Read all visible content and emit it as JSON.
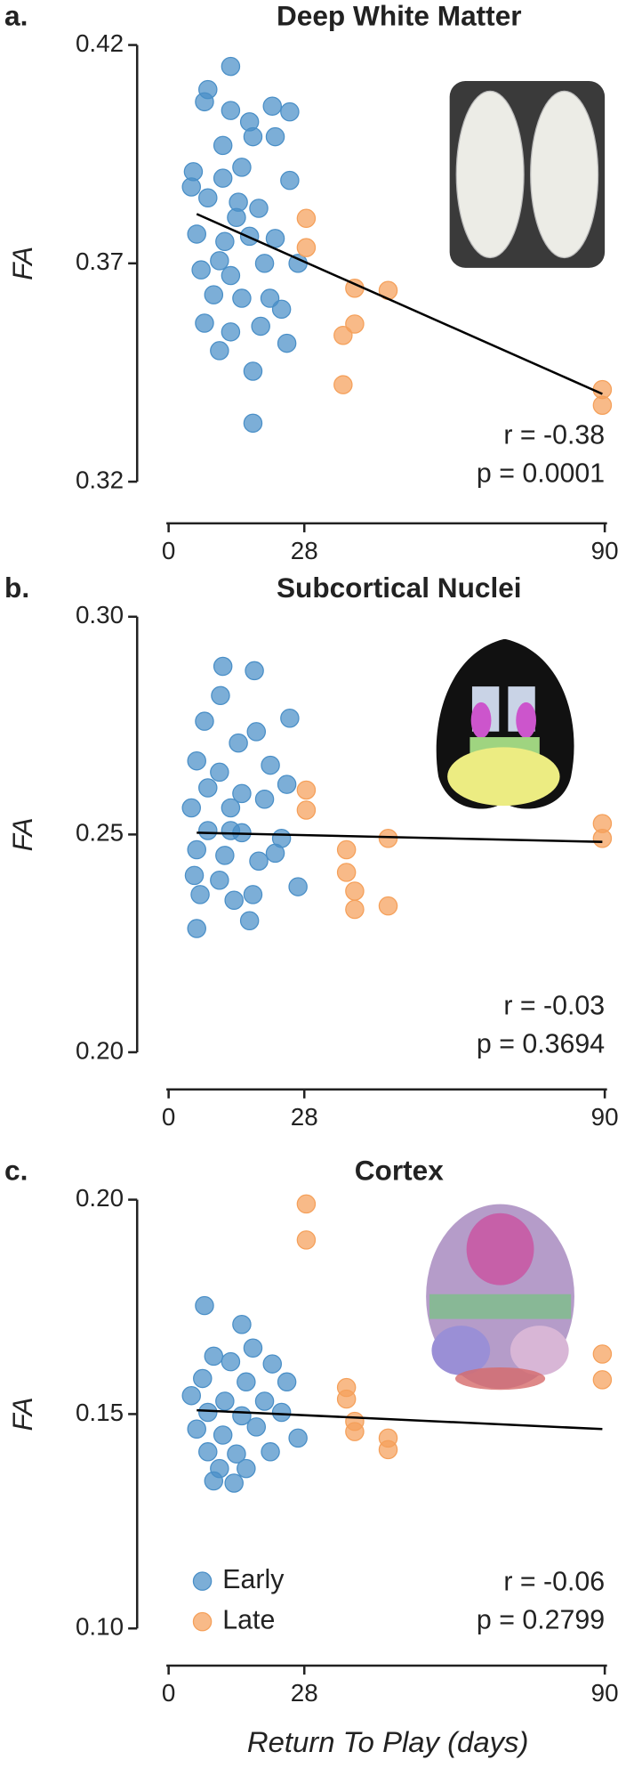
{
  "chart_data": [
    {
      "type": "scatter",
      "panel_label": "a.",
      "title": "Deep White Matter",
      "ylabel": "FA",
      "xlim": [
        0,
        90
      ],
      "xticks": [
        0,
        28,
        90
      ],
      "ylim": [
        0.32,
        0.42
      ],
      "yticks": [
        0.32,
        0.37,
        0.42
      ],
      "annotations": [
        "r = -0.38",
        "p = 0.0001"
      ],
      "trendline": {
        "color": "#000000",
        "x": [
          5.8,
          89.5
        ],
        "values": [
          0.3813,
          0.3401
        ]
      },
      "series": [
        {
          "color": "#4a8fc7",
          "x": [
            12.8,
            8.1,
            7.4,
            12.8,
            21.4,
            25,
            16.7,
            11.2,
            17.4,
            22,
            5.1,
            11.2,
            25,
            8.1,
            14.4,
            18.6,
            5.8,
            11.6,
            16.7,
            22,
            6.7,
            12.8,
            19.8,
            26.7,
            9.3,
            15.1,
            20.9,
            7.4,
            12.8,
            19,
            24.4,
            10.5,
            17.4,
            17.4,
            15.1,
            4.7,
            10.5,
            23.3,
            14
          ],
          "values": [
            0.4151,
            0.4098,
            0.407,
            0.405,
            0.406,
            0.4047,
            0.4024,
            0.397,
            0.399,
            0.399,
            0.391,
            0.3895,
            0.389,
            0.385,
            0.384,
            0.3826,
            0.3767,
            0.375,
            0.3762,
            0.3757,
            0.3685,
            0.3672,
            0.37,
            0.37,
            0.3628,
            0.362,
            0.362,
            0.3563,
            0.3543,
            0.3556,
            0.3517,
            0.35,
            0.3453,
            0.3334,
            0.392,
            0.3875,
            0.3706,
            0.3595,
            0.3805
          ]
        },
        {
          "color": "#f5a05a",
          "x": [
            28.4,
            28.4,
            38.4,
            45.3,
            38.4,
            36,
            36,
            89.5,
            89.5
          ],
          "values": [
            0.3803,
            0.3736,
            0.3643,
            0.3638,
            0.3561,
            0.3535,
            0.3422,
            0.3411,
            0.3375
          ]
        }
      ]
    },
    {
      "type": "scatter",
      "panel_label": "b.",
      "title": "Subcortical Nuclei",
      "ylabel": "FA",
      "xlim": [
        0,
        90
      ],
      "xticks": [
        0,
        28,
        90
      ],
      "ylim": [
        0.2,
        0.3
      ],
      "yticks": [
        {
          "value": 0.2,
          "label": "0.20"
        },
        0.25,
        {
          "value": 0.3,
          "label": "0.30"
        }
      ],
      "annotations": [
        "r = -0.03",
        "p = 0.3694"
      ],
      "trendline": {
        "color": "#000000",
        "x": [
          5.8,
          89.5
        ],
        "values": [
          0.2504,
          0.2483
        ]
      },
      "series": [
        {
          "color": "#4a8fc7",
          "x": [
            11.2,
            17.7,
            10.7,
            7.4,
            25,
            14.4,
            18.1,
            5.8,
            10.5,
            21,
            24.4,
            8.1,
            15.1,
            4.7,
            12.8,
            19.8,
            8.1,
            15.1,
            23.3,
            5.8,
            11.6,
            18.6,
            5.3,
            10.5,
            17.4,
            26.7,
            6.5,
            13.5,
            16.7,
            5.8,
            22,
            12.8
          ],
          "values": [
            0.2886,
            0.2876,
            0.2819,
            0.276,
            0.2767,
            0.271,
            0.2736,
            0.2669,
            0.2643,
            0.2659,
            0.2615,
            0.2607,
            0.2594,
            0.2561,
            0.2561,
            0.2581,
            0.2509,
            0.2504,
            0.2491,
            0.2465,
            0.2452,
            0.2439,
            0.2406,
            0.2395,
            0.2362,
            0.238,
            0.2362,
            0.2349,
            0.2302,
            0.2284,
            0.2457,
            0.2509
          ]
        },
        {
          "color": "#f5a05a",
          "x": [
            28.4,
            28.4,
            36.7,
            45.3,
            36.7,
            38.4,
            38.4,
            45.3,
            89.5,
            89.5
          ],
          "values": [
            0.2602,
            0.2556,
            0.2465,
            0.2491,
            0.2413,
            0.237,
            0.2328,
            0.2336,
            0.2525,
            0.2491
          ]
        }
      ]
    },
    {
      "type": "scatter",
      "panel_label": "c.",
      "title": "Cortex",
      "ylabel": "FA",
      "xlabel": "Return To Play (days)",
      "xlim": [
        0,
        90
      ],
      "xticks": [
        0,
        28,
        90
      ],
      "ylim": [
        0.1,
        0.2
      ],
      "yticks": [
        {
          "value": 0.1,
          "label": "0.10"
        },
        0.15,
        {
          "value": 0.2,
          "label": "0.20"
        }
      ],
      "annotations": [
        "r = -0.06",
        "p = 0.2799"
      ],
      "trendline": {
        "color": "#000000",
        "x": [
          5.8,
          89.5
        ],
        "values": [
          0.1509,
          0.1465
        ]
      },
      "series": [
        {
          "name": "Early",
          "color": "#4a8fc7",
          "x": [
            7.4,
            15.1,
            17.4,
            9.3,
            12.8,
            21.4,
            7,
            16,
            24.4,
            4.7,
            11.6,
            19.8,
            8.1,
            15.1,
            23.3,
            5.8,
            11.2,
            18.1,
            26.7,
            8.1,
            14,
            21,
            10.5,
            16,
            13.5,
            9.3
          ],
          "values": [
            0.1753,
            0.1709,
            0.1654,
            0.1635,
            0.1622,
            0.1617,
            0.1583,
            0.1575,
            0.1575,
            0.1543,
            0.153,
            0.153,
            0.1504,
            0.1496,
            0.1504,
            0.1465,
            0.1451,
            0.147,
            0.1444,
            0.1412,
            0.1407,
            0.1412,
            0.1373,
            0.1373,
            0.1339,
            0.1344
          ]
        },
        {
          "name": "Late",
          "color": "#f5a05a",
          "x": [
            28.4,
            28.4,
            36.7,
            36.7,
            38.4,
            38.4,
            45.3,
            45.3,
            89.5,
            89.5
          ],
          "values": [
            0.199,
            0.1906,
            0.1562,
            0.1535,
            0.1483,
            0.1459,
            0.1444,
            0.1417,
            0.164,
            0.158
          ]
        }
      ]
    }
  ]
}
